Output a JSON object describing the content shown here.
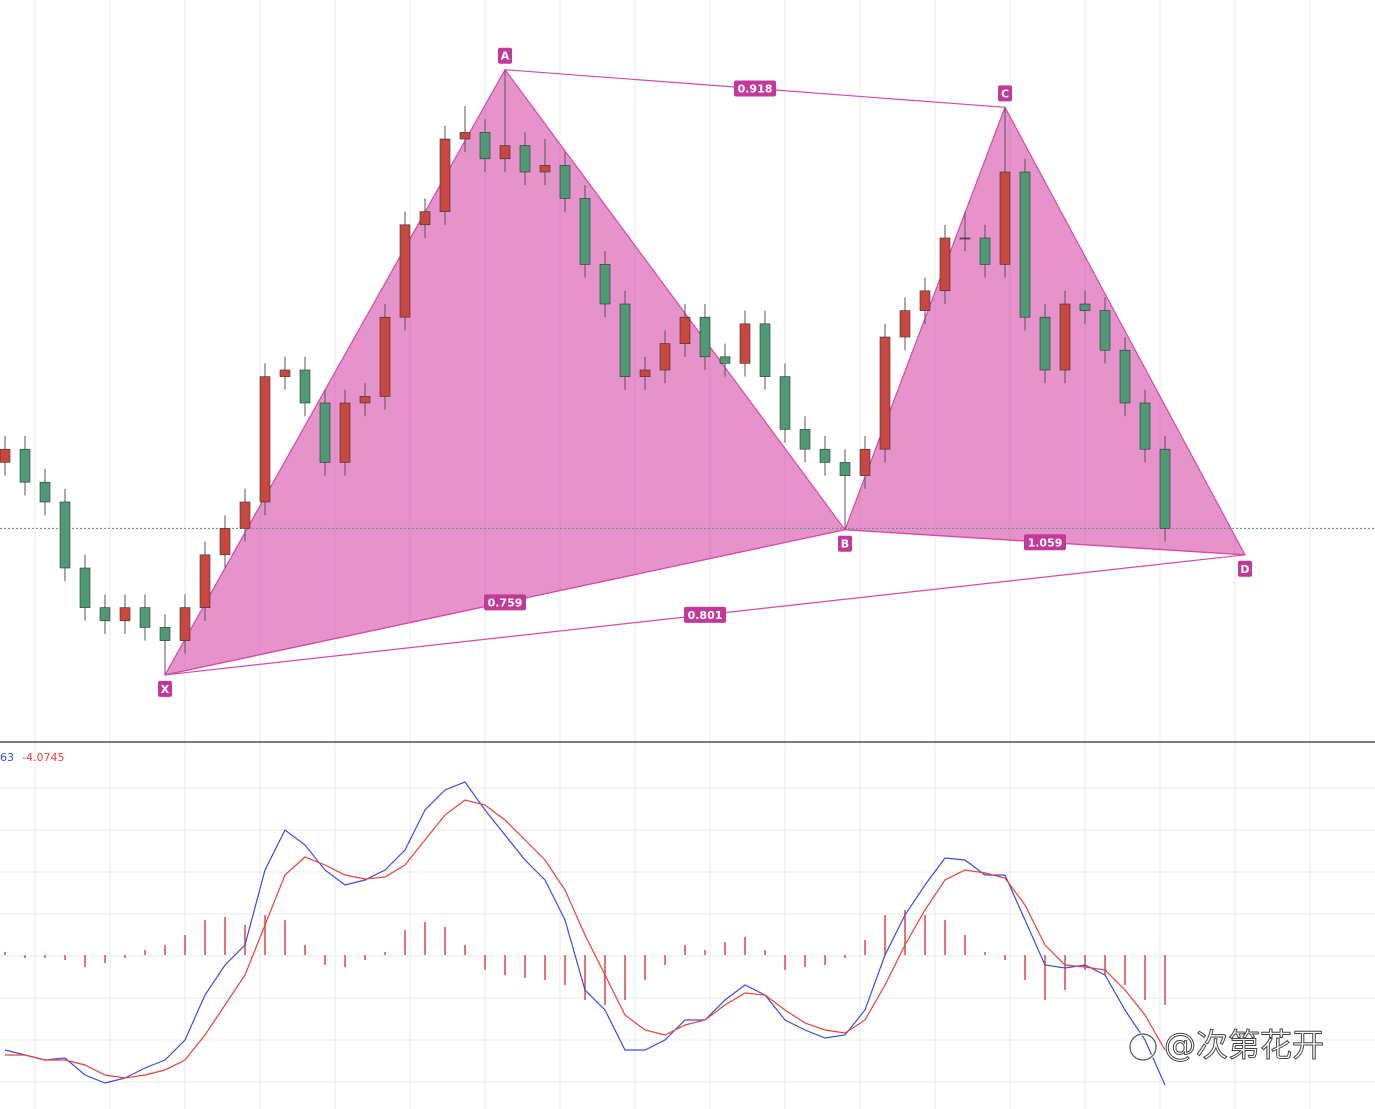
{
  "chart_data": [
    {
      "type": "candlestick",
      "ylim": [
        0,
        100
      ],
      "up_color": "#c8473f",
      "down_color": "#4f9a74",
      "open": [
        36,
        38,
        33,
        30,
        20,
        14,
        12,
        14,
        11,
        9,
        14,
        22,
        26,
        30,
        49,
        50,
        45,
        36,
        45,
        46,
        58,
        72,
        74,
        85,
        86,
        82,
        84,
        80,
        81,
        76,
        66,
        60,
        49,
        50,
        54,
        58,
        52,
        51,
        57,
        49,
        41,
        38,
        36,
        34,
        38,
        55,
        59,
        62,
        70,
        70,
        66,
        80,
        58,
        50,
        60,
        59,
        53,
        45,
        38
      ],
      "high": [
        40,
        40,
        35,
        32,
        22,
        16,
        16,
        16,
        13,
        16,
        24,
        28,
        32,
        51,
        52,
        52,
        47,
        47,
        48,
        60,
        74,
        76,
        87,
        90,
        88,
        95.5,
        86,
        85,
        83,
        78,
        68,
        62,
        52,
        56,
        60,
        60,
        54,
        59,
        59,
        51,
        43,
        40,
        38,
        40,
        57,
        61,
        64,
        72,
        74,
        72,
        89.8,
        82,
        60,
        62,
        62,
        61,
        55,
        47,
        40
      ],
      "low": [
        34,
        31,
        28,
        18,
        12,
        10,
        10,
        9,
        3.8,
        7,
        12,
        20,
        24,
        28,
        47,
        43,
        34,
        34,
        43,
        44,
        56,
        70,
        72,
        83,
        80,
        80,
        78,
        78,
        74,
        64,
        58,
        47,
        47,
        48,
        52,
        50,
        49,
        49,
        47,
        39,
        36,
        34,
        25.8,
        32,
        36,
        53,
        57,
        60,
        68,
        64,
        64,
        56,
        48,
        48,
        57,
        51,
        43,
        36,
        24
      ],
      "close": [
        38,
        33,
        30,
        20,
        14,
        12,
        14,
        11,
        9,
        14,
        22,
        26,
        30,
        49,
        50,
        45,
        36,
        45,
        46,
        58,
        72,
        74,
        85,
        86,
        82,
        84,
        80,
        81,
        76,
        66,
        60,
        49,
        50,
        54,
        58,
        52,
        51,
        57,
        49,
        41,
        38,
        36,
        34,
        38,
        55,
        59,
        62,
        70,
        70,
        66,
        80,
        58,
        50,
        60,
        59,
        53,
        45,
        38,
        26
      ],
      "pattern": {
        "color": "#d54aa8",
        "points": [
          {
            "label": "X",
            "x": 8,
            "y": 3.8
          },
          {
            "label": "A",
            "x": 25,
            "y": 95.5
          },
          {
            "label": "B",
            "x": 42,
            "y": 25.8
          },
          {
            "label": "C",
            "x": 50,
            "y": 89.8
          },
          {
            "label": "D",
            "x": 62,
            "y": 22
          }
        ],
        "ratios": [
          0.759,
          0.918,
          0.801,
          1.059
        ]
      }
    },
    {
      "type": "macd",
      "ylim": [
        -15,
        20
      ],
      "readout": [
        63,
        -4.0745
      ],
      "series": [
        {
          "color": "#3b4cdc",
          "values": [
            -9.5,
            -10,
            -10.5,
            -10.3,
            -12,
            -12.8,
            -12.3,
            -11.3,
            -10.5,
            -8.5,
            -4,
            -1,
            1,
            8.5,
            12.5,
            11,
            8.5,
            7,
            7.5,
            8.5,
            10.5,
            14.5,
            16.5,
            17.3,
            14.5,
            12,
            9.5,
            7.5,
            3.5,
            -3.5,
            -5.5,
            -9.5,
            -9.5,
            -8.5,
            -6.5,
            -6.5,
            -4.5,
            -3,
            -4,
            -6.5,
            -7.5,
            -8.3,
            -8,
            -5.5,
            0,
            4,
            7,
            9.7,
            9.5,
            8,
            8,
            3.5,
            -1,
            -1.3,
            -1,
            -2,
            -5.5,
            -8.5,
            -13
          ]
        },
        {
          "color": "#e8413c",
          "values": [
            -10,
            -10,
            -10.5,
            -10.5,
            -11,
            -12,
            -12.3,
            -12,
            -11.5,
            -10.5,
            -8,
            -5,
            -2,
            3,
            8,
            9.8,
            9,
            8,
            7.6,
            7.8,
            9,
            11.5,
            14,
            15.5,
            15,
            13.5,
            11.5,
            9.5,
            6.5,
            2,
            -2,
            -6,
            -7.5,
            -8,
            -7,
            -6.5,
            -5,
            -3.8,
            -4,
            -5.5,
            -6.8,
            -7.5,
            -7.8,
            -6.5,
            -3,
            1,
            4.5,
            7.5,
            8.5,
            8.2,
            7.7,
            5,
            1,
            -1,
            -1.2,
            -1.5,
            -3.5,
            -6,
            -9.5
          ]
        }
      ],
      "histogram": {
        "color": "#d9474a",
        "values": [
          0.3,
          -0.3,
          -0.3,
          -0.5,
          -1.2,
          -0.8,
          -0.3,
          0.5,
          1,
          2,
          3.5,
          3.8,
          3,
          4,
          3.5,
          1,
          -1,
          -1.2,
          -0.5,
          0.3,
          2.5,
          3.3,
          2.8,
          1,
          -1.5,
          -2,
          -2.3,
          -2.5,
          -3,
          -4.5,
          -5,
          -4.5,
          -2.5,
          -1,
          1,
          0.5,
          1.3,
          1.8,
          0.5,
          -1.5,
          -1.2,
          -1,
          -0.3,
          1.5,
          4,
          4.5,
          4,
          3.5,
          2,
          0.3,
          -0.5,
          -2.5,
          -4.5,
          -3.5,
          -1.5,
          -2,
          -3,
          -4.5,
          -5
        ]
      }
    }
  ],
  "watermark": "@次第花开"
}
